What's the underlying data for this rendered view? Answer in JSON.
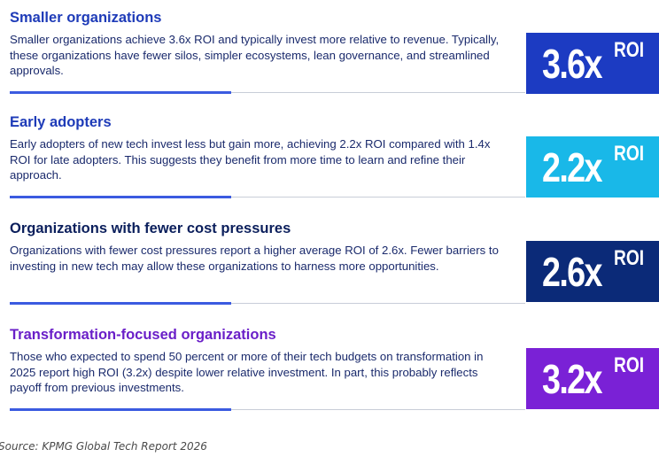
{
  "sections": [
    {
      "title": "Smaller organizations",
      "description": "Smaller organizations achieve 3.6x ROI and typically invest more relative to revenue. Typically, these organizations have fewer silos, simpler ecosystems, lean governance, and streamlined approvals.",
      "roi_value": "3.6x",
      "roi_suffix": "ROI",
      "title_color": "#1e3bb8",
      "tile_color": "#1c3bc2"
    },
    {
      "title": "Early adopters",
      "description": "Early adopters of new tech invest less but gain more, achieving 2.2x ROI compared with 1.4x ROI for late adopters. This suggests they benefit from more time to learn and refine their approach.",
      "roi_value": "2.2x",
      "roi_suffix": "ROI",
      "title_color": "#1e3bb8",
      "tile_color": "#19b8e8"
    },
    {
      "title": "Organizations with fewer cost pressures",
      "description": "Organizations with fewer cost pressures report a higher average ROI of 2.6x. Fewer barriers to investing in new tech may allow these organizations to harness more opportunities.",
      "roi_value": "2.6x",
      "roi_suffix": "ROI",
      "title_color": "#0b1f5c",
      "tile_color": "#0b2a78"
    },
    {
      "title": "Transformation-focused organizations",
      "description": "Those who expected to spend 50 percent or more of their tech budgets on transformation in 2025 report high ROI (3.2x) despite lower relative investment. In part, this probably reflects payoff from previous investments.",
      "roi_value": "3.2x",
      "roi_suffix": "ROI",
      "title_color": "#6a1fc8",
      "tile_color": "#7a21d6"
    }
  ],
  "source": "Source: KPMG Global Tech Report 2026"
}
